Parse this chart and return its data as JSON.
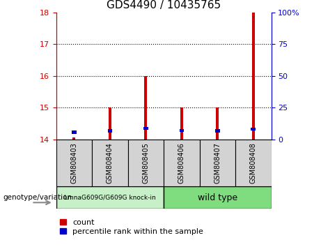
{
  "title": "GDS4490 / 10435765",
  "samples": [
    "GSM808403",
    "GSM808404",
    "GSM808405",
    "GSM808406",
    "GSM808407",
    "GSM808408"
  ],
  "red_bars": [
    14.06,
    15.0,
    16.0,
    15.0,
    15.0,
    18.0
  ],
  "blue_squares": [
    14.18,
    14.22,
    14.3,
    14.24,
    14.22,
    14.28
  ],
  "ymin": 14,
  "ymax": 18,
  "yticks_left": [
    14,
    15,
    16,
    17,
    18
  ],
  "yticks_right": [
    0,
    25,
    50,
    75,
    100
  ],
  "grid_lines": [
    15,
    16,
    17
  ],
  "group1_label": "LmnaG609G/G609G knock-in",
  "group2_label": "wild type",
  "group1_color": "#c8f0c8",
  "group2_color": "#7fdc7f",
  "sample_box_color": "#d3d3d3",
  "bar_color": "#cc0000",
  "square_color": "#0000cc",
  "left_axis_color": "#cc0000",
  "right_axis_color": "#0000cc",
  "legend_count_label": "count",
  "legend_pct_label": "percentile rank within the sample",
  "genotype_label": "genotype/variation",
  "title_fontsize": 11,
  "tick_fontsize": 8,
  "sample_fontsize": 7,
  "legend_fontsize": 8,
  "bar_width": 0.08
}
